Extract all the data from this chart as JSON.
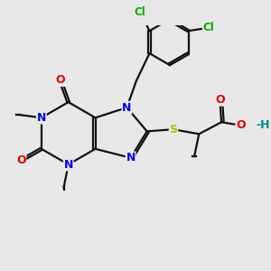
{
  "bg": "#e8e8e8",
  "bc": "#111111",
  "N_color": "#0000ee",
  "O_color": "#dd0000",
  "S_color": "#bbbb00",
  "Cl_color": "#00aa00",
  "H_color": "#008888",
  "C_color": "#111111",
  "lw": 1.6,
  "dbl_off": 0.055,
  "xlim": [
    -1.0,
    9.5
  ],
  "ylim": [
    -0.5,
    9.0
  ]
}
